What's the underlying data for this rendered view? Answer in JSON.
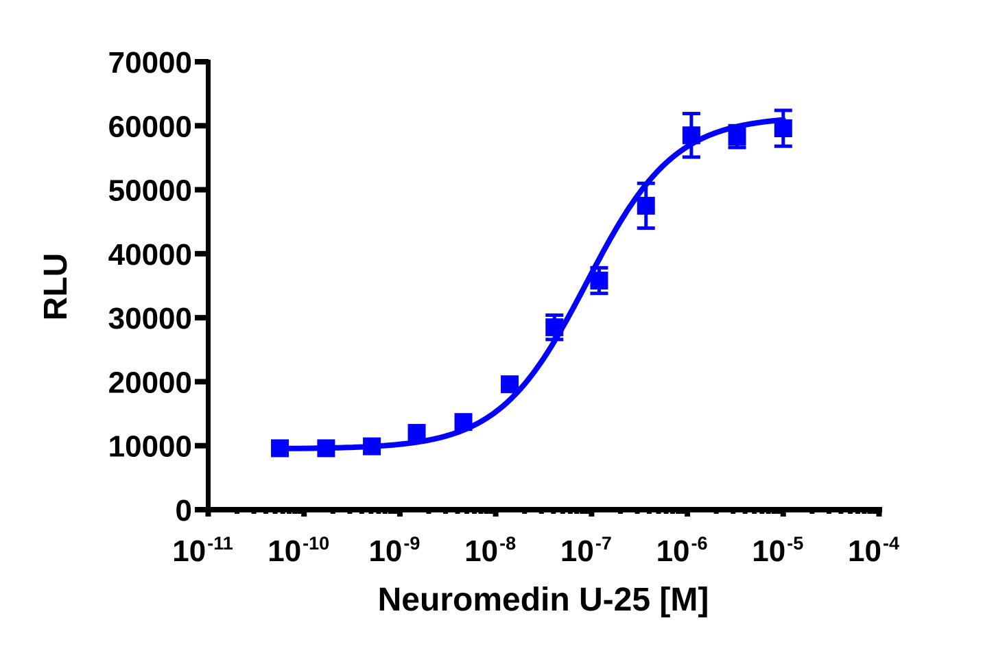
{
  "chart_data": {
    "type": "scatter",
    "title": "",
    "xlabel": "Neuromedin U-25 [M]",
    "ylabel": "RLU",
    "xscale": "log",
    "xlim": [
      1e-11,
      0.0001
    ],
    "ylim": [
      0,
      70000
    ],
    "grid": false,
    "legend": null,
    "x_ticks": [
      {
        "value": 1e-11,
        "base": "10",
        "exp": "-11"
      },
      {
        "value": 1e-10,
        "base": "10",
        "exp": "-10"
      },
      {
        "value": 1e-09,
        "base": "10",
        "exp": "-9"
      },
      {
        "value": 1e-08,
        "base": "10",
        "exp": "-8"
      },
      {
        "value": 1e-07,
        "base": "10",
        "exp": "-7"
      },
      {
        "value": 1e-06,
        "base": "10",
        "exp": "-6"
      },
      {
        "value": 1e-05,
        "base": "10",
        "exp": "-5"
      },
      {
        "value": 0.0001,
        "base": "10",
        "exp": "-4"
      }
    ],
    "y_ticks": [
      0,
      10000,
      20000,
      30000,
      40000,
      50000,
      60000,
      70000
    ],
    "y_tick_labels": [
      "0",
      "10000",
      "20000",
      "30000",
      "40000",
      "50000",
      "60000",
      "70000"
    ],
    "series": [
      {
        "name": "Neuromedin U-25",
        "color": "#0000ff",
        "marker": "square",
        "fit": "sigmoidal dose-response (4PL)",
        "x": [
          5.6e-11,
          1.7e-10,
          5.1e-10,
          1.5e-09,
          4.6e-09,
          1.4e-08,
          4.1e-08,
          1.2e-07,
          3.7e-07,
          1.1e-06,
          3.3e-06,
          1e-05
        ],
        "y": [
          9600,
          9600,
          9900,
          12000,
          13700,
          19600,
          28500,
          35800,
          47500,
          58500,
          58300,
          59600
        ],
        "error": [
          300,
          300,
          400,
          500,
          600,
          700,
          1900,
          2000,
          3500,
          3400,
          1700,
          2800
        ]
      }
    ],
    "fit_params": {
      "bottom": 9500,
      "top": 61500,
      "log_ec50": -7.05,
      "hill": 0.95
    }
  }
}
